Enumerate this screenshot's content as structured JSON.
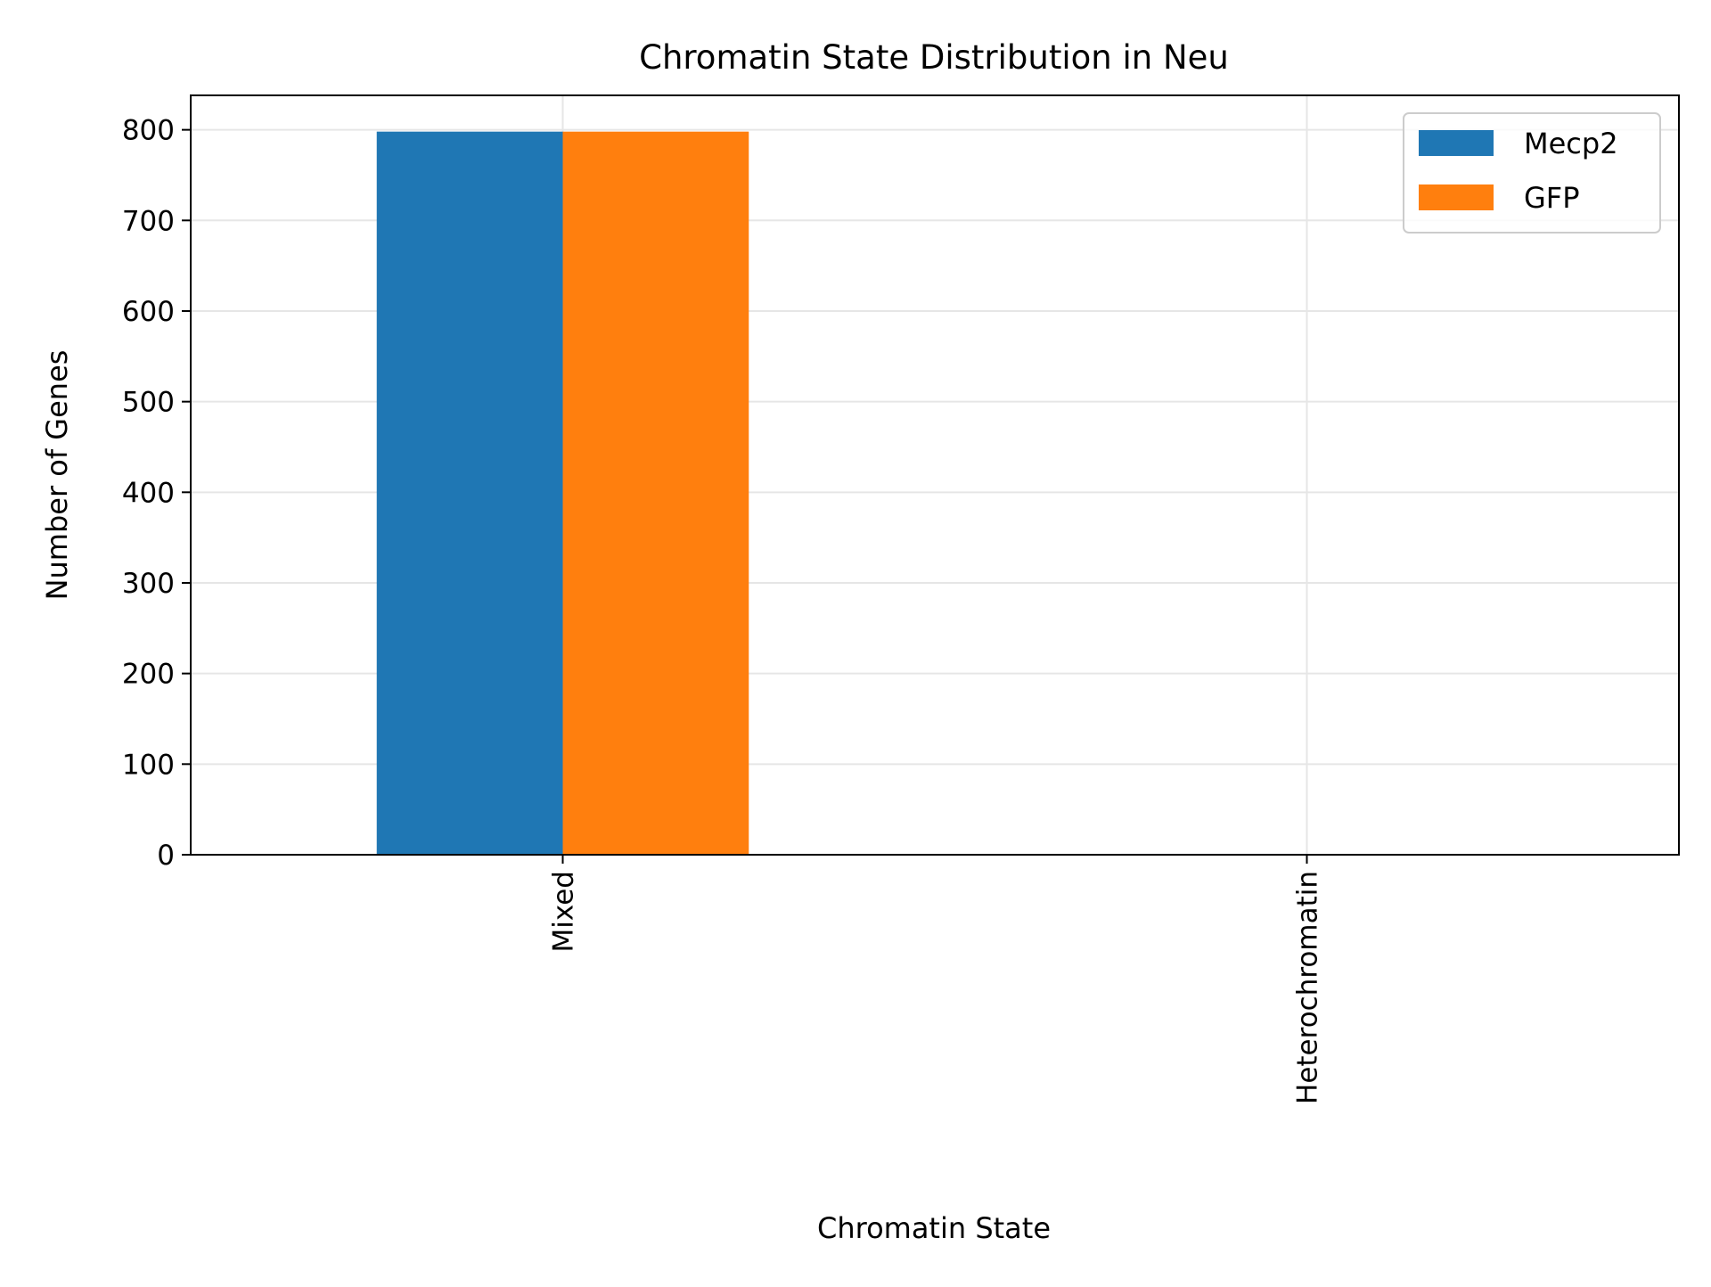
{
  "chart_data": {
    "type": "bar",
    "title": "Chromatin State Distribution in Neu",
    "xlabel": "Chromatin State",
    "ylabel": "Number of Genes",
    "categories": [
      "Mixed",
      "Heterochromatin"
    ],
    "series": [
      {
        "name": "Mecp2",
        "values": [
          798,
          1
        ],
        "color": "#1f77b4"
      },
      {
        "name": "GFP",
        "values": [
          798,
          0
        ],
        "color": "#ff7f0e"
      }
    ],
    "ylim": [
      0,
      838
    ],
    "yticks": [
      0,
      100,
      200,
      300,
      400,
      500,
      600,
      700,
      800
    ],
    "grid": true,
    "legend_position": "top-right",
    "xtick_rotation": "vertical"
  }
}
